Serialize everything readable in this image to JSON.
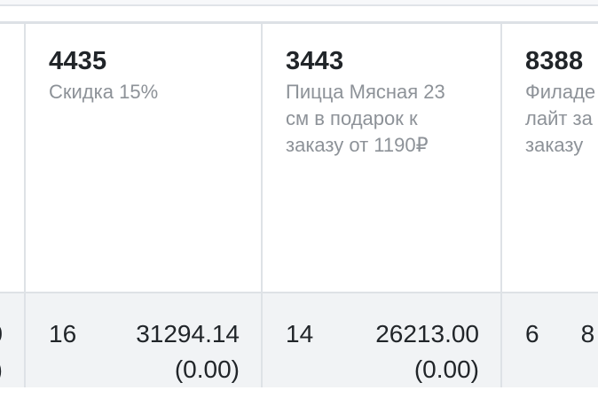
{
  "table": {
    "columns": [
      {
        "name": "offscreen-left-column",
        "promo": {
          "id": "",
          "description_lines": []
        },
        "stats": {
          "count": "",
          "amount_line1": "0",
          "amount_line2": ")"
        }
      },
      {
        "name": "promo-4435",
        "promo": {
          "id": "4435",
          "description_lines": [
            "Скидка 15%",
            "",
            ""
          ]
        },
        "stats": {
          "count": "16",
          "amount_line1": "31294.14",
          "amount_line2": "(0.00)"
        }
      },
      {
        "name": "promo-3443",
        "promo": {
          "id": "3443",
          "description_lines": [
            "Пицца Мясная 23",
            "см в подарок к",
            "заказу от 1190₽"
          ]
        },
        "stats": {
          "count": "14",
          "amount_line1": "26213.00",
          "amount_line2": "(0.00)"
        }
      },
      {
        "name": "promo-8388",
        "promo": {
          "id": "8388",
          "description_lines": [
            "Филаде",
            "лайт за",
            "заказу"
          ]
        },
        "stats": {
          "count": "6",
          "amount_line1": "8",
          "amount_line2": ""
        }
      }
    ],
    "colors": {
      "border": "#dee2e6",
      "stats_row_bg": "#f1f3f5",
      "top_strip_bg": "#f7f8fa",
      "id_text": "#212529",
      "description_text": "#8d9298",
      "stats_text": "#212529"
    }
  }
}
